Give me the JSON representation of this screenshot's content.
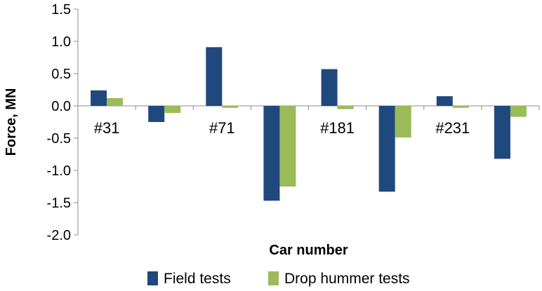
{
  "chart_data": {
    "type": "bar",
    "ylabel": "Force, MN",
    "xlabel": "Car number",
    "ylim": [
      -2.0,
      1.5
    ],
    "yticks": [
      "1.5",
      "1.0",
      "0.5",
      "0.0",
      "-0.5",
      "-1.0",
      "-1.5",
      "-2.0"
    ],
    "ytick_values": [
      1.5,
      1.0,
      0.5,
      0.0,
      -0.5,
      -1.0,
      -1.5,
      -2.0
    ],
    "categories": [
      "#31",
      "",
      "#71",
      "",
      "#181",
      "",
      "#231",
      ""
    ],
    "grid": false,
    "legend_position": "bottom",
    "series": [
      {
        "name": "Field tests",
        "color": "#1f497d",
        "values": [
          0.24,
          -0.25,
          0.91,
          -1.47,
          0.57,
          -1.33,
          0.15,
          -0.82
        ]
      },
      {
        "name": "Drop hummer tests",
        "color": "#9bbb59",
        "values": [
          0.12,
          -0.11,
          -0.03,
          -1.25,
          -0.05,
          -0.49,
          -0.03,
          -0.17
        ]
      }
    ]
  }
}
